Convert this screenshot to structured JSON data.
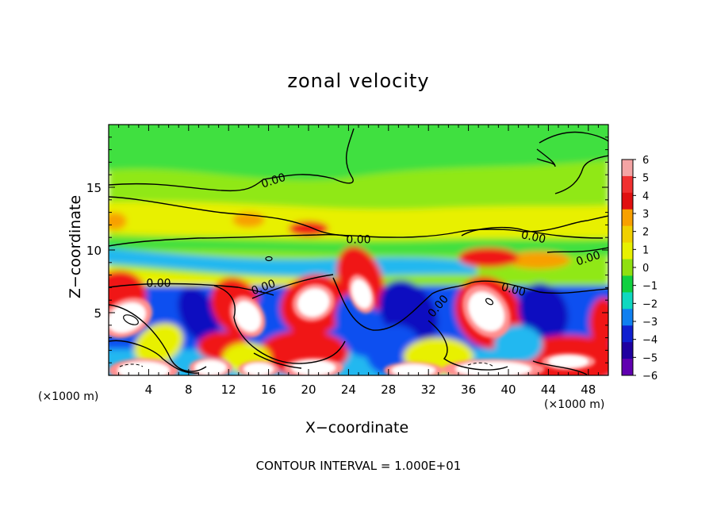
{
  "title": "zonal velocity",
  "xlabel": "X−coordinate",
  "ylabel": "Z−coordinate",
  "x_unit_left": "(×1000 m)",
  "x_unit_right": "(×1000 m)",
  "contour_note": "CONTOUR INTERVAL = 1.000E+01",
  "chart_data": {
    "type": "heatmap",
    "title": "zonal velocity",
    "xlabel": "X−coordinate",
    "ylabel": "Z−coordinate",
    "x_ticks": [
      4,
      8,
      12,
      16,
      20,
      24,
      28,
      32,
      36,
      40,
      44,
      48
    ],
    "y_ticks": [
      5,
      10,
      15
    ],
    "xlim": [
      0,
      50
    ],
    "ylim": [
      0,
      20
    ],
    "contour_label": "0.00",
    "contour_label_positions": [
      [
        16.5,
        15.5
      ],
      [
        25.0,
        10.8
      ],
      [
        42.5,
        11.0
      ],
      [
        48.0,
        9.3
      ],
      [
        5.0,
        7.3
      ],
      [
        15.5,
        7.0
      ],
      [
        40.5,
        6.8
      ],
      [
        33.0,
        5.5
      ]
    ],
    "colorbar": {
      "ticks": [
        "6",
        "5",
        "4",
        "3",
        "2",
        "1",
        "0",
        "−1",
        "−2",
        "−3",
        "−4",
        "−5",
        "−6"
      ],
      "colors": [
        "#f4a4a4",
        "#f03030",
        "#e01010",
        "#f8a000",
        "#f0d000",
        "#e8f000",
        "#90e010",
        "#10d040",
        "#10d8c0",
        "#1080f0",
        "#1020d0",
        "#2000a0",
        "#6000b0"
      ]
    },
    "colors": {
      "white": "#ffffff",
      "pink": "#ff9090",
      "red": "#f01818",
      "orange": "#f8a000",
      "yellow": "#e8f000",
      "lime": "#90e818",
      "green": "#40e040",
      "teal": "#20d8a8",
      "cyan": "#20b8f0",
      "blue": "#1050f0",
      "darkblue": "#1010c0",
      "purple": "#5000a0"
    }
  }
}
